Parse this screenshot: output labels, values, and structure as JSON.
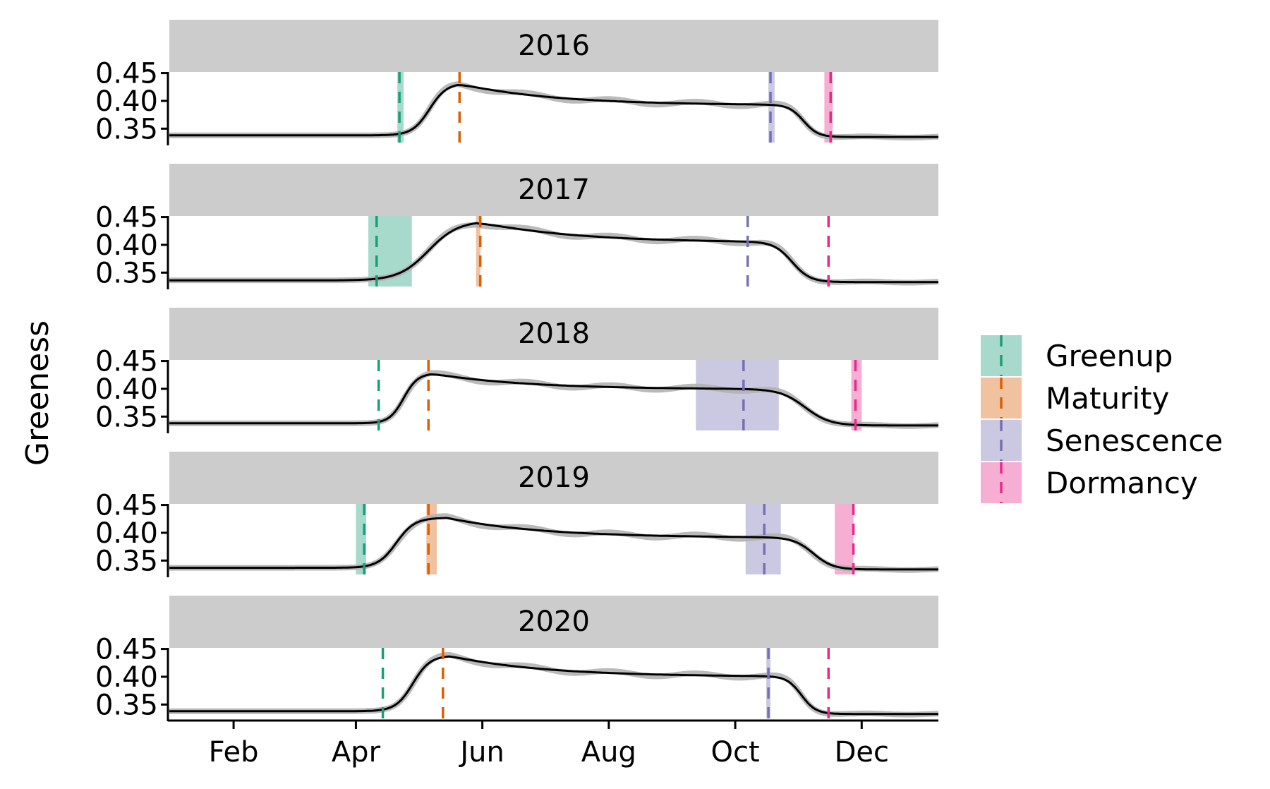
{
  "chart_data": {
    "type": "line",
    "ylabel": "Greeness",
    "xlabel": "",
    "x_tick_labels": [
      "Feb",
      "Apr",
      "Jun",
      "Aug",
      "Oct",
      "Dec"
    ],
    "x_ticks_doy": [
      32,
      91,
      152,
      213,
      274,
      335
    ],
    "xlim_doy": [
      1,
      372
    ],
    "y_ticks": [
      0.35,
      0.4,
      0.45
    ],
    "y_tick_labels": [
      "0.35",
      "0.40",
      "0.45"
    ],
    "ylim": [
      0.325,
      0.452
    ],
    "legend": {
      "position": "right",
      "items": [
        {
          "name": "Greenup",
          "color": "#1b9e77"
        },
        {
          "name": "Maturity",
          "color": "#d95f02"
        },
        {
          "name": "Senescence",
          "color": "#7570b3"
        },
        {
          "name": "Dormancy",
          "color": "#e7298a"
        }
      ]
    },
    "panels": [
      {
        "year": "2016",
        "base": 0.338,
        "peak": 0.432,
        "peak_doy": 140,
        "plateau": 0.392,
        "end": 0.335,
        "phenophases": {
          "Greenup": {
            "doy": 112,
            "range": [
              111,
              114
            ]
          },
          "Maturity": {
            "doy": 141,
            "range": null
          },
          "Senescence": {
            "doy": 291,
            "range": [
              290,
              293
            ]
          },
          "Dormancy": {
            "doy": 320,
            "range": [
              317,
              321
            ]
          }
        }
      },
      {
        "year": "2017",
        "base": 0.336,
        "peak": 0.443,
        "peak_doy": 149,
        "plateau": 0.404,
        "end": 0.333,
        "phenophases": {
          "Greenup": {
            "doy": 101,
            "range": [
              97,
              118
            ]
          },
          "Maturity": {
            "doy": 151,
            "range": [
              149,
              151
            ]
          },
          "Senescence": {
            "doy": 280,
            "range": null
          },
          "Dormancy": {
            "doy": 319,
            "range": null
          }
        }
      },
      {
        "year": "2018",
        "base": 0.338,
        "peak": 0.428,
        "peak_doy": 127,
        "plateau": 0.399,
        "end": 0.334,
        "phenophases": {
          "Greenup": {
            "doy": 102,
            "range": null
          },
          "Maturity": {
            "doy": 126,
            "range": null
          },
          "Senescence": {
            "doy": 278,
            "range": [
              255,
              295
            ]
          },
          "Dormancy": {
            "doy": 332,
            "range": [
              330,
              335
            ]
          }
        }
      },
      {
        "year": "2019",
        "base": 0.337,
        "peak": 0.427,
        "peak_doy": 135,
        "plateau": 0.391,
        "end": 0.334,
        "phenophases": {
          "Greenup": {
            "doy": 95,
            "range": [
              91,
              96
            ]
          },
          "Maturity": {
            "doy": 126,
            "range": [
              125,
              130
            ]
          },
          "Senescence": {
            "doy": 288,
            "range": [
              279,
              296
            ]
          },
          "Dormancy": {
            "doy": 331,
            "range": [
              322,
              331
            ]
          }
        }
      },
      {
        "year": "2020",
        "base": 0.338,
        "peak": 0.438,
        "peak_doy": 136,
        "plateau": 0.4,
        "end": 0.333,
        "phenophases": {
          "Greenup": {
            "doy": 104,
            "range": null
          },
          "Maturity": {
            "doy": 133,
            "range": null
          },
          "Senescence": {
            "doy": 290,
            "range": [
              289,
              291
            ]
          },
          "Dormancy": {
            "doy": 319,
            "range": null
          }
        }
      }
    ]
  }
}
